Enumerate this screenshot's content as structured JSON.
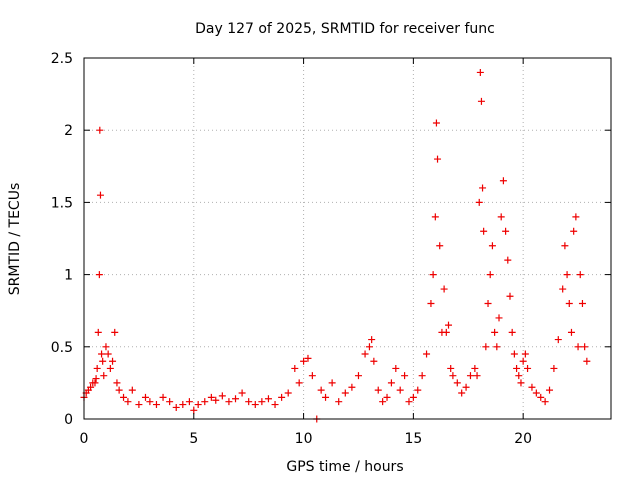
{
  "chart_data": {
    "type": "scatter",
    "title": "Day 127 of 2025, SRMTID for receiver func",
    "xlabel": "GPS time / hours",
    "ylabel": "SRMTID / TECUs",
    "xlim": [
      0,
      24
    ],
    "ylim": [
      0,
      2.5
    ],
    "x_ticks": [
      0,
      5,
      10,
      15,
      20
    ],
    "x_tick_labels": [
      "0",
      "5",
      "10",
      "15",
      "20"
    ],
    "y_ticks": [
      0,
      0.5,
      1,
      1.5,
      2,
      2.5
    ],
    "y_tick_labels": [
      "0",
      "0.5",
      "1",
      "1.5",
      "2",
      "2.5"
    ],
    "grid": true,
    "marker": "+",
    "series": [
      {
        "name": "SRMTID",
        "color": "#ee0000",
        "x": [
          0.0,
          0.1,
          0.2,
          0.3,
          0.4,
          0.5,
          0.55,
          0.6,
          0.65,
          0.7,
          0.72,
          0.75,
          0.8,
          0.85,
          0.9,
          1.0,
          1.1,
          1.2,
          1.3,
          1.4,
          1.5,
          1.6,
          1.8,
          2.0,
          2.2,
          2.5,
          2.8,
          3.0,
          3.3,
          3.6,
          3.9,
          4.2,
          4.5,
          4.8,
          5.0,
          5.2,
          5.5,
          5.8,
          6.0,
          6.3,
          6.6,
          6.9,
          7.2,
          7.5,
          7.8,
          8.1,
          8.4,
          8.7,
          9.0,
          9.3,
          9.6,
          9.8,
          10.0,
          10.2,
          10.4,
          10.6,
          10.8,
          11.0,
          11.3,
          11.6,
          11.9,
          12.2,
          12.5,
          12.8,
          13.0,
          13.1,
          13.2,
          13.4,
          13.6,
          13.8,
          14.0,
          14.2,
          14.4,
          14.6,
          14.8,
          15.0,
          15.2,
          15.4,
          15.6,
          15.8,
          15.9,
          16.0,
          16.05,
          16.1,
          16.2,
          16.3,
          16.4,
          16.5,
          16.6,
          16.7,
          16.8,
          17.0,
          17.2,
          17.4,
          17.6,
          17.8,
          17.9,
          18.0,
          18.05,
          18.1,
          18.15,
          18.2,
          18.3,
          18.4,
          18.5,
          18.6,
          18.7,
          18.8,
          18.9,
          19.0,
          19.1,
          19.2,
          19.3,
          19.4,
          19.5,
          19.6,
          19.7,
          19.8,
          19.9,
          20.0,
          20.1,
          20.2,
          20.4,
          20.6,
          20.8,
          21.0,
          21.2,
          21.4,
          21.6,
          21.8,
          21.9,
          22.0,
          22.1,
          22.2,
          22.3,
          22.4,
          22.5,
          22.6,
          22.7,
          22.8,
          22.9
        ],
        "y": [
          0.15,
          0.18,
          0.2,
          0.22,
          0.25,
          0.25,
          0.28,
          0.35,
          0.6,
          1.0,
          2.0,
          1.55,
          0.45,
          0.4,
          0.3,
          0.5,
          0.45,
          0.35,
          0.4,
          0.6,
          0.25,
          0.2,
          0.15,
          0.12,
          0.2,
          0.1,
          0.15,
          0.12,
          0.1,
          0.15,
          0.12,
          0.08,
          0.1,
          0.12,
          0.06,
          0.1,
          0.12,
          0.15,
          0.13,
          0.16,
          0.12,
          0.14,
          0.18,
          0.12,
          0.1,
          0.12,
          0.14,
          0.1,
          0.15,
          0.18,
          0.35,
          0.25,
          0.4,
          0.42,
          0.3,
          0.0,
          0.2,
          0.15,
          0.25,
          0.12,
          0.18,
          0.22,
          0.3,
          0.45,
          0.5,
          0.55,
          0.4,
          0.2,
          0.12,
          0.15,
          0.25,
          0.35,
          0.2,
          0.3,
          0.12,
          0.15,
          0.2,
          0.3,
          0.45,
          0.8,
          1.0,
          1.4,
          2.05,
          1.8,
          1.2,
          0.6,
          0.9,
          0.6,
          0.65,
          0.35,
          0.3,
          0.25,
          0.18,
          0.22,
          0.3,
          0.35,
          0.3,
          1.5,
          2.4,
          2.2,
          1.6,
          1.3,
          0.5,
          0.8,
          1.0,
          1.2,
          0.6,
          0.5,
          0.7,
          1.4,
          1.65,
          1.3,
          1.1,
          0.85,
          0.6,
          0.45,
          0.35,
          0.3,
          0.25,
          0.4,
          0.45,
          0.35,
          0.22,
          0.18,
          0.15,
          0.12,
          0.2,
          0.35,
          0.55,
          0.9,
          1.2,
          1.0,
          0.8,
          0.6,
          1.3,
          1.4,
          0.5,
          1.0,
          0.8,
          0.5,
          0.4
        ]
      }
    ]
  }
}
